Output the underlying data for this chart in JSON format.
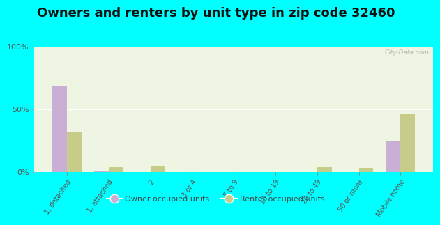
{
  "title": "Owners and renters by unit type in zip code 32460",
  "categories": [
    "1, detached",
    "1, attached",
    "2",
    "3 or 4",
    "5 to 9",
    "10 to 19",
    "20 to 49",
    "50 or more",
    "Mobile home"
  ],
  "owner_values": [
    68,
    1,
    0,
    0,
    0,
    0,
    0,
    0,
    25
  ],
  "renter_values": [
    32,
    4,
    5,
    0,
    0,
    0,
    4,
    3,
    46
  ],
  "owner_color": "#c9afd4",
  "renter_color": "#c8cc8a",
  "owner_label": "Owner occupied units",
  "renter_label": "Renter occupied units",
  "ylim": [
    0,
    100
  ],
  "yticks": [
    0,
    50,
    100
  ],
  "ytick_labels": [
    "0%",
    "50%",
    "100%"
  ],
  "background_color": "#00ffff",
  "plot_bg_color": "#eef5e2",
  "title_fontsize": 13,
  "watermark": "City-Data.com"
}
